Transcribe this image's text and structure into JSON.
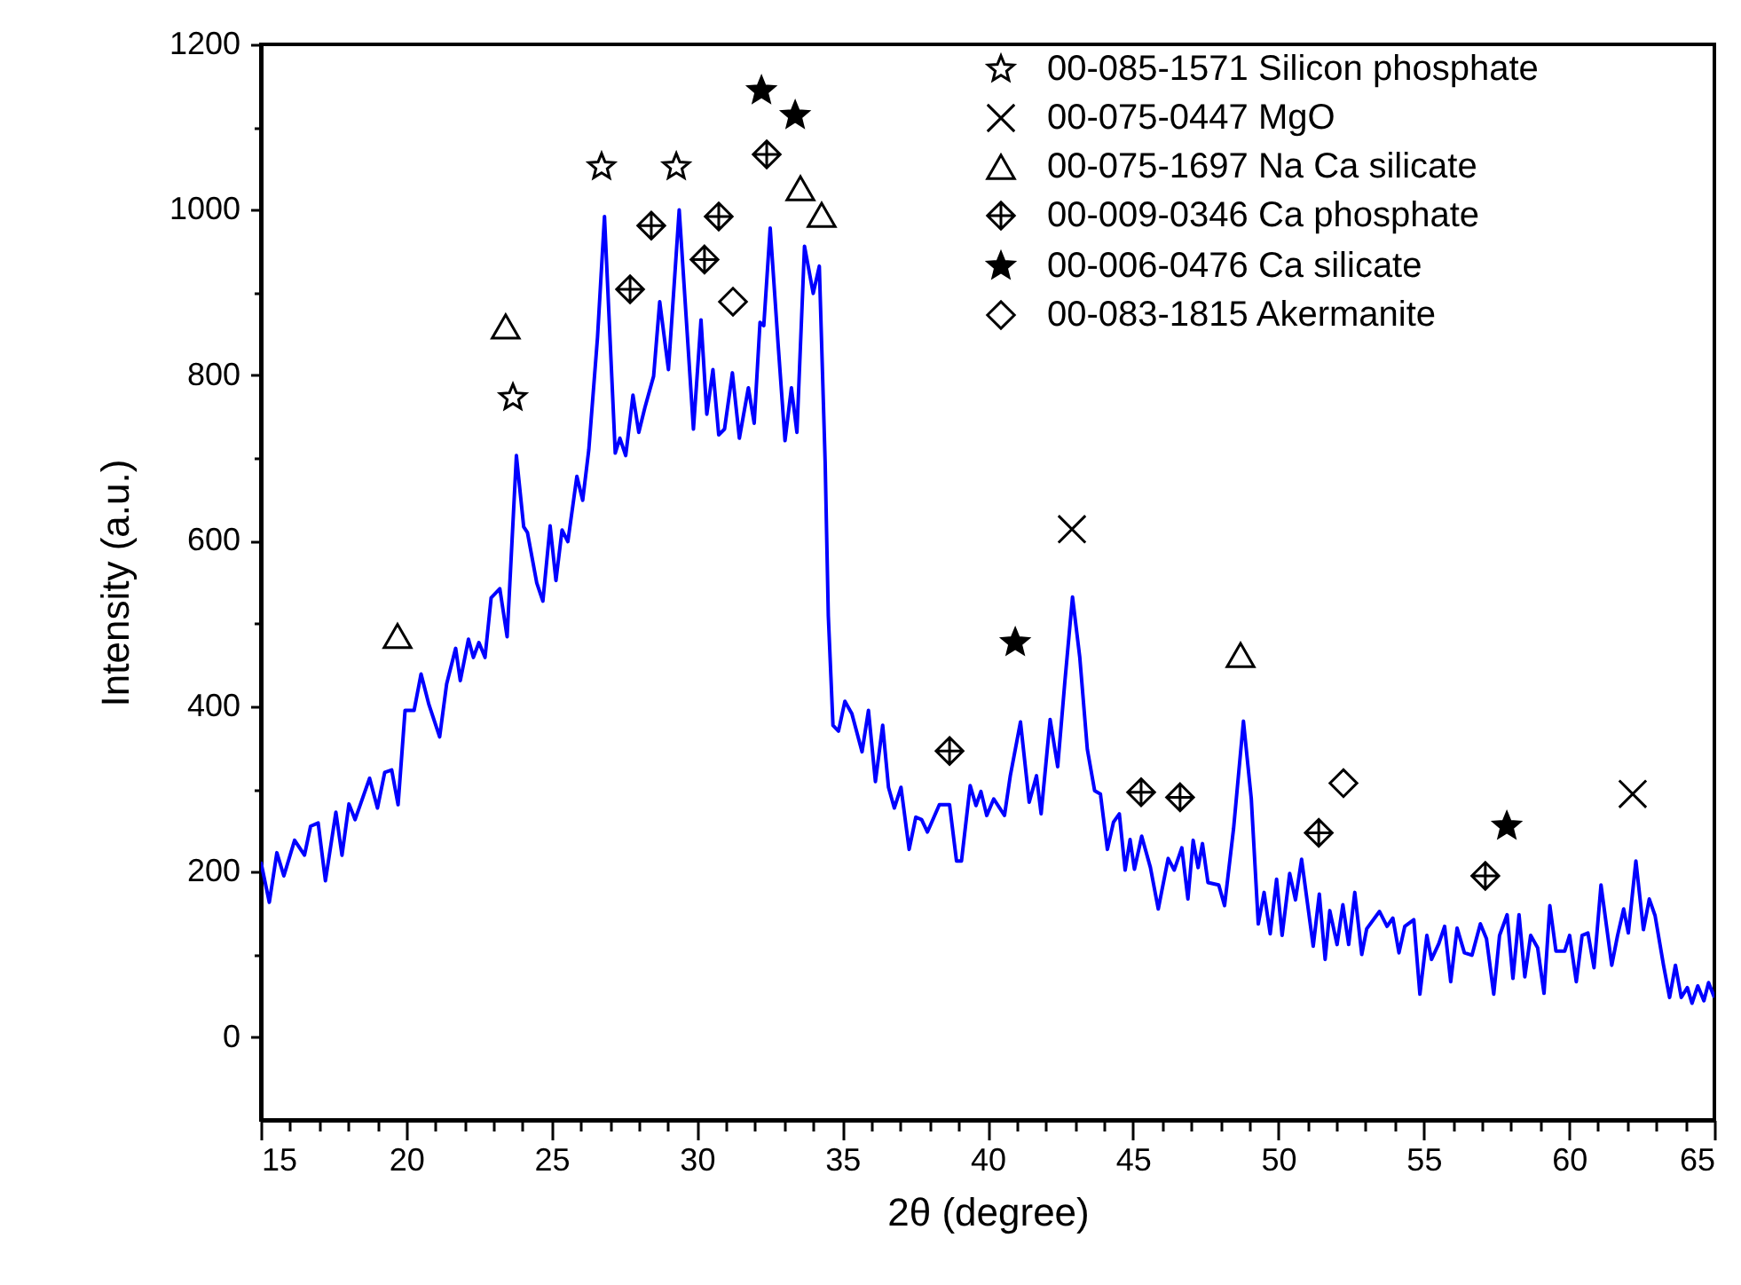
{
  "chart_data": {
    "type": "line",
    "xlabel": "2θ (degree)",
    "ylabel": "Intensity (a.u.)",
    "xlim": [
      15,
      65
    ],
    "ylim": [
      -100,
      1200
    ],
    "xticks": [
      15,
      {
        "value": 16,
        "label": null
      },
      {
        "value": 17,
        "label": null
      },
      {
        "value": 18,
        "label": null
      },
      {
        "value": 19,
        "label": null
      },
      20,
      {
        "value": 21,
        "label": null
      },
      {
        "value": 22,
        "label": null
      },
      {
        "value": 23,
        "label": null
      },
      {
        "value": 24,
        "label": null
      },
      25,
      {
        "value": 26,
        "label": null
      },
      {
        "value": 27,
        "label": null
      },
      {
        "value": 28,
        "label": null
      },
      {
        "value": 29,
        "label": null
      },
      30,
      {
        "value": 31,
        "label": null
      },
      {
        "value": 32,
        "label": null
      },
      {
        "value": 33,
        "label": null
      },
      {
        "value": 34,
        "label": null
      },
      35,
      {
        "value": 36,
        "label": null
      },
      {
        "value": 37,
        "label": null
      },
      {
        "value": 38,
        "label": null
      },
      {
        "value": 39,
        "label": null
      },
      40,
      {
        "value": 41,
        "label": null
      },
      {
        "value": 42,
        "label": null
      },
      {
        "value": 43,
        "label": null
      },
      {
        "value": 44,
        "label": null
      },
      45,
      {
        "value": 46,
        "label": null
      },
      {
        "value": 47,
        "label": null
      },
      {
        "value": 48,
        "label": null
      },
      {
        "value": 49,
        "label": null
      },
      50,
      {
        "value": 51,
        "label": null
      },
      {
        "value": 52,
        "label": null
      },
      {
        "value": 53,
        "label": null
      },
      {
        "value": 54,
        "label": null
      },
      55,
      {
        "value": 56,
        "label": null
      },
      {
        "value": 57,
        "label": null
      },
      {
        "value": 58,
        "label": null
      },
      {
        "value": 59,
        "label": null
      },
      60,
      {
        "value": 61,
        "label": null
      },
      {
        "value": 62,
        "label": null
      },
      {
        "value": 63,
        "label": null
      },
      {
        "value": 64,
        "label": null
      },
      65
    ],
    "yticks": [
      0,
      {
        "value": 100,
        "label": null
      },
      200,
      {
        "value": 300,
        "label": null
      },
      400,
      {
        "value": 500,
        "label": null
      },
      600,
      {
        "value": 700,
        "label": null
      },
      800,
      {
        "value": 900,
        "label": null
      },
      1000,
      {
        "value": 1100,
        "label": null
      },
      1200
    ],
    "grid": false,
    "legend": "top right",
    "series": [
      {
        "type": "line",
        "color": "#0000ff",
        "line_style": "solid",
        "marker": "none",
        "x": [
          15.0,
          15.29,
          15.55,
          15.79,
          16.16,
          16.5,
          16.71,
          16.97,
          17.22,
          17.58,
          17.79,
          18.03,
          18.24,
          18.74,
          19.01,
          19.26,
          19.5,
          19.72,
          19.96,
          20.27,
          20.51,
          20.78,
          21.15,
          21.39,
          21.7,
          21.86,
          22.14,
          22.31,
          22.5,
          22.71,
          22.92,
          23.22,
          23.47,
          23.79,
          24.04,
          24.17,
          24.49,
          24.7,
          24.95,
          25.15,
          25.36,
          25.56,
          25.87,
          26.07,
          26.28,
          26.58,
          26.82,
          27.19,
          27.35,
          27.55,
          27.8,
          28.0,
          28.21,
          28.51,
          28.72,
          29.02,
          29.39,
          29.88,
          30.14,
          30.34,
          30.55,
          30.75,
          30.95,
          31.22,
          31.46,
          31.77,
          31.97,
          32.17,
          32.3,
          32.52,
          32.79,
          33.03,
          33.25,
          33.44,
          33.7,
          34.0,
          34.21,
          34.41,
          34.52,
          34.68,
          34.87,
          35.09,
          35.33,
          35.68,
          35.9,
          36.14,
          36.39,
          36.59,
          36.79,
          37.02,
          37.3,
          37.53,
          37.73,
          37.93,
          38.34,
          38.69,
          38.93,
          39.1,
          39.4,
          39.6,
          39.77,
          39.97,
          40.21,
          40.58,
          40.78,
          41.13,
          41.43,
          41.68,
          41.84,
          42.15,
          42.41,
          42.66,
          42.92,
          43.17,
          43.43,
          43.68,
          43.88,
          44.12,
          44.33,
          44.53,
          44.73,
          44.9,
          45.05,
          45.3,
          45.6,
          45.87,
          46.21,
          46.42,
          46.68,
          46.89,
          47.07,
          47.24,
          47.39,
          47.58,
          47.95,
          48.15,
          48.46,
          48.8,
          49.07,
          49.31,
          49.51,
          49.72,
          49.94,
          50.13,
          50.39,
          50.59,
          50.8,
          51.2,
          51.41,
          51.61,
          51.77,
          52.02,
          52.22,
          52.42,
          52.63,
          52.87,
          53.04,
          53.48,
          53.74,
          53.94,
          54.15,
          54.35,
          54.66,
          54.87,
          55.11,
          55.27,
          55.52,
          55.72,
          55.93,
          56.15,
          56.4,
          56.66,
          56.95,
          57.16,
          57.41,
          57.61,
          57.87,
          58.07,
          58.28,
          58.48,
          58.68,
          58.92,
          59.14,
          59.34,
          59.55,
          59.85,
          60.02,
          60.25,
          60.45,
          60.65,
          60.86,
          61.1,
          61.47,
          61.67,
          61.88,
          62.04,
          62.3,
          62.56,
          62.76,
          62.96,
          63.25,
          63.46,
          63.66,
          63.86,
          64.07,
          64.23,
          64.43,
          64.64,
          64.8,
          65.0
        ],
        "values": [
          212,
          163,
          223,
          195,
          238,
          220,
          255,
          259,
          189,
          272,
          220,
          282,
          263,
          313,
          277,
          320,
          323,
          281,
          395,
          395,
          439,
          402,
          363,
          427,
          470,
          431,
          481,
          459,
          477,
          459,
          531,
          542,
          484,
          703,
          617,
          610,
          549,
          527,
          618,
          552,
          613,
          599,
          678,
          649,
          710,
          846,
          992,
          706,
          724,
          703,
          776,
          731,
          761,
          799,
          889,
          807,
          1000,
          735,
          867,
          753,
          807,
          728,
          735,
          803,
          724,
          785,
          742,
          864,
          860,
          978,
          839,
          721,
          785,
          731,
          956,
          899,
          932,
          696,
          509,
          377,
          370,
          406,
          391,
          345,
          395,
          309,
          377,
          302,
          277,
          302,
          227,
          266,
          263,
          248,
          281,
          281,
          213,
          213,
          304,
          280,
          297,
          268,
          288,
          268,
          316,
          381,
          284,
          316,
          270,
          384,
          327,
          431,
          532,
          459,
          348,
          298,
          294,
          227,
          260,
          270,
          202,
          239,
          203,
          243,
          205,
          155,
          216,
          202,
          229,
          167,
          238,
          205,
          234,
          187,
          184,
          159,
          252,
          382,
          288,
          137,
          175,
          125,
          191,
          123,
          198,
          166,
          215,
          110,
          173,
          94,
          153,
          112,
          160,
          112,
          175,
          100,
          131,
          152,
          134,
          144,
          102,
          134,
          142,
          52,
          123,
          94,
          113,
          134,
          67,
          132,
          102,
          99,
          137,
          119,
          52,
          123,
          148,
          71,
          148,
          73,
          123,
          108,
          53,
          159,
          104,
          104,
          123,
          67,
          123,
          126,
          84,
          184,
          87,
          123,
          155,
          126,
          213,
          130,
          167,
          147,
          87,
          48,
          87,
          48,
          60,
          41,
          62,
          44,
          66,
          48
        ]
      },
      {
        "type": "scatter",
        "name": "00-085-1571 Silicon phosphate",
        "color": "#000000",
        "marker": "star-open",
        "x": [
          23.67,
          26.72,
          29.29
        ],
        "values": [
          773,
          1052,
          1052
        ]
      },
      {
        "type": "scatter",
        "name": "00-075-0447 MgO",
        "color": "#000000",
        "marker": "x",
        "x": [
          42.9,
          62.19
        ],
        "values": [
          614,
          294
        ]
      },
      {
        "type": "scatter",
        "name": "00-075-1697 Na Ca silicate",
        "color": "#000000",
        "marker": "triangle-open",
        "x": [
          19.7,
          23.42,
          33.56,
          34.29,
          48.7
        ],
        "values": [
          485,
          859,
          1026,
          994,
          462
        ]
      },
      {
        "type": "scatter",
        "name": "00-009-0346 Ca phosphate",
        "color": "#000000",
        "marker": "cross",
        "x": [
          27.7,
          28.43,
          30.26,
          30.75,
          32.4,
          38.69,
          45.28,
          46.62,
          51.39,
          57.12
        ],
        "values": [
          904,
          981,
          940,
          992,
          1067,
          346,
          296,
          290,
          247,
          195
        ]
      },
      {
        "type": "scatter",
        "name": "00-006-0476 Ca silicate",
        "color": "#000000",
        "marker": "star",
        "x": [
          32.22,
          33.38,
          40.95,
          57.86
        ],
        "values": [
          1144,
          1114,
          477,
          255
        ]
      },
      {
        "type": "scatter",
        "name": "00-083-1815 Akermanite",
        "color": "#000000",
        "marker": "diamond-open",
        "x": [
          31.24,
          52.24
        ],
        "values": [
          889,
          307
        ]
      }
    ]
  }
}
